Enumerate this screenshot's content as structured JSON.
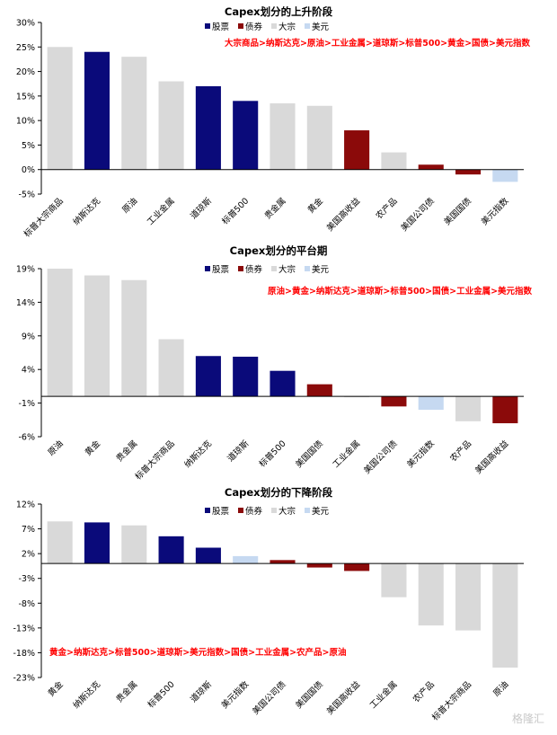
{
  "chart_data": [
    {
      "type": "bar",
      "title": "Capex划分的上升阶段",
      "legend": [
        "股票",
        "债券",
        "大宗",
        "美元"
      ],
      "legend_colors": [
        "#0a0a7a",
        "#8b0a0a",
        "#d9d9d9",
        "#c6d9f1"
      ],
      "note": "大宗商品>纳斯达克>原油>工业金属>道琼斯>标普500>黄金>国债>美元指数",
      "categories": [
        "标普大宗商品",
        "纳斯达克",
        "原油",
        "工业金属",
        "道琼斯",
        "标普500",
        "贵金属",
        "黄金",
        "美国高收益",
        "农产品",
        "美国公司债",
        "美国国债",
        "美元指数"
      ],
      "values": [
        25,
        24,
        23,
        18,
        17,
        14,
        13.5,
        13,
        8,
        3.5,
        1,
        -1,
        -2.5
      ],
      "groups": [
        "大宗",
        "股票",
        "大宗",
        "大宗",
        "股票",
        "股票",
        "大宗",
        "大宗",
        "债券",
        "大宗",
        "债券",
        "债券",
        "美元"
      ],
      "ylim": [
        -5,
        30
      ],
      "yticks": [
        -5,
        0,
        5,
        10,
        15,
        20,
        25,
        30
      ],
      "ytick_labels": [
        "-5%",
        "0%",
        "5%",
        "10%",
        "15%",
        "20%",
        "25%",
        "30%"
      ]
    },
    {
      "type": "bar",
      "title": "Capex划分的平台期",
      "legend": [
        "股票",
        "债券",
        "大宗",
        "美元"
      ],
      "legend_colors": [
        "#0a0a7a",
        "#8b0a0a",
        "#d9d9d9",
        "#c6d9f1"
      ],
      "note": "原油>黄金>纳斯达克>道琼斯>标普500>国债>工业金属>美元指数",
      "categories": [
        "原油",
        "黄金",
        "贵金属",
        "标普大宗商品",
        "纳斯达克",
        "道琼斯",
        "标普500",
        "美国国债",
        "工业金属",
        "美国公司债",
        "美元指数",
        "农产品",
        "美国高收益"
      ],
      "values": [
        19,
        18,
        17.3,
        8.5,
        6,
        5.9,
        3.8,
        1.8,
        0,
        -1.5,
        -2,
        -3.7,
        -4
      ],
      "groups": [
        "大宗",
        "大宗",
        "大宗",
        "大宗",
        "股票",
        "股票",
        "股票",
        "债券",
        "大宗",
        "债券",
        "美元",
        "大宗",
        "债券"
      ],
      "ylim": [
        -6,
        19
      ],
      "yticks": [
        -6,
        -1,
        4,
        9,
        14,
        19
      ],
      "ytick_labels": [
        "-6%",
        "-1%",
        "4%",
        "9%",
        "14%",
        "19%"
      ]
    },
    {
      "type": "bar",
      "title": "Capex划分的下降阶段",
      "legend": [
        "股票",
        "债券",
        "大宗",
        "美元"
      ],
      "legend_colors": [
        "#0a0a7a",
        "#8b0a0a",
        "#d9d9d9",
        "#c6d9f1"
      ],
      "note": "黄金>纳斯达克>标普500>道琼斯>美元指数>国债>工业金属>农产品>原油",
      "categories": [
        "黄金",
        "纳斯达克",
        "贵金属",
        "标普500",
        "道琼斯",
        "美元指数",
        "美国公司债",
        "美国国债",
        "美国高收益",
        "工业金属",
        "农产品",
        "标普大宗商品",
        "原油"
      ],
      "values": [
        8.5,
        8.3,
        7.7,
        5.5,
        3.2,
        1.5,
        0.7,
        -0.8,
        -1.5,
        -6.8,
        -12.5,
        -13.5,
        -21
      ],
      "groups": [
        "大宗",
        "股票",
        "大宗",
        "股票",
        "股票",
        "美元",
        "债券",
        "债券",
        "债券",
        "大宗",
        "大宗",
        "大宗",
        "大宗"
      ],
      "ylim": [
        -23,
        12
      ],
      "yticks": [
        -23,
        -18,
        -13,
        -8,
        -3,
        2,
        7,
        12
      ],
      "ytick_labels": [
        "-23%",
        "-18%",
        "-13%",
        "-8%",
        "-3%",
        "2%",
        "7%",
        "12%"
      ]
    }
  ],
  "group_colors": {
    "股票": "#0a0a7a",
    "债券": "#8b0a0a",
    "大宗": "#d9d9d9",
    "美元": "#c6d9f1"
  },
  "note_color": "#ff0000",
  "watermark": "格隆汇"
}
